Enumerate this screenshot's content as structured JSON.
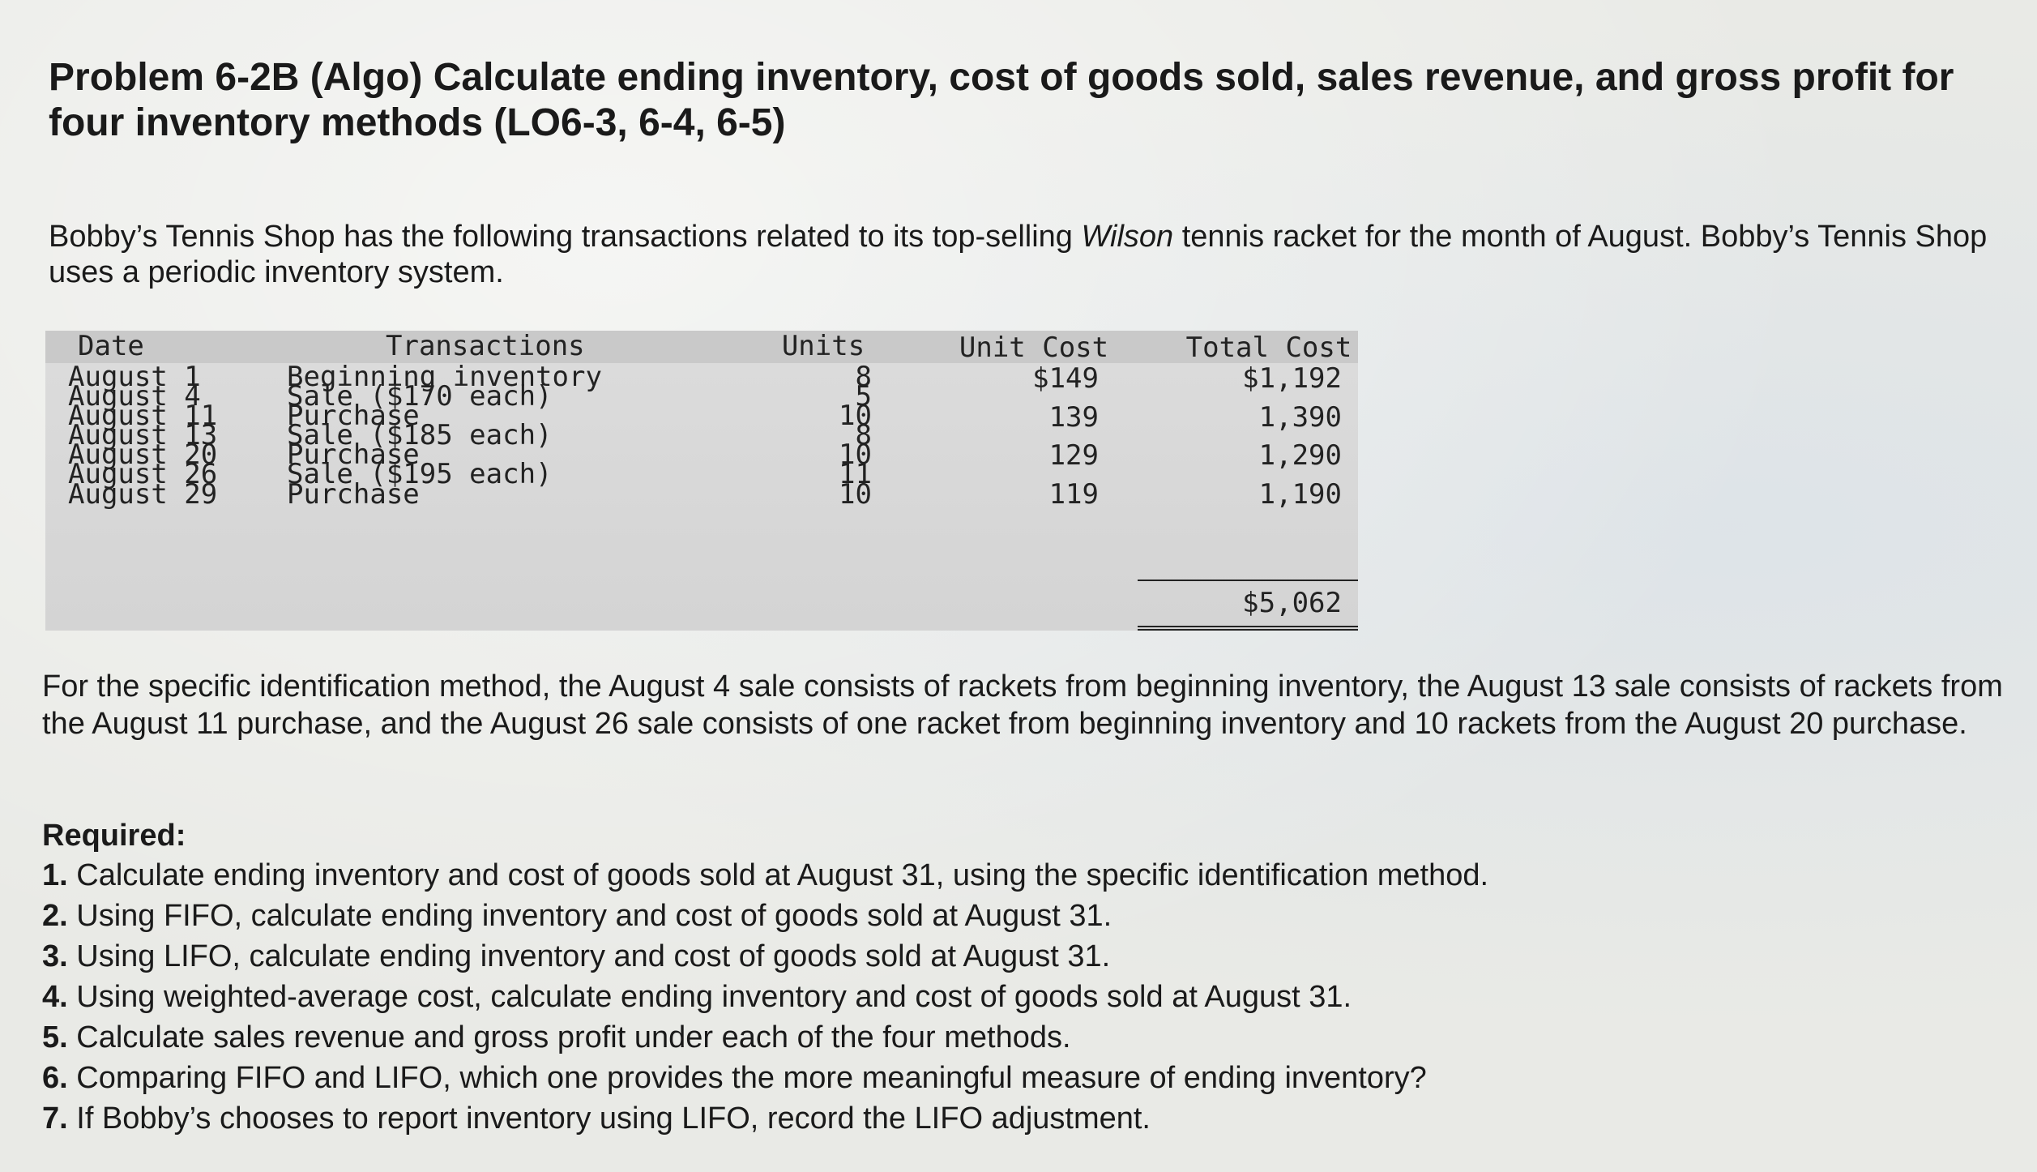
{
  "title": "Problem 6-2B (Algo) Calculate ending inventory, cost of goods sold, sales revenue, and gross profit for four inventory methods (LO6-3, 6-4, 6-5)",
  "intro": {
    "before": "Bobby’s Tennis Shop has the following transactions related to its top-selling ",
    "brand": "Wilson",
    "after": " tennis racket for the month of August. Bobby’s Tennis Shop uses a periodic inventory system."
  },
  "table": {
    "headers": {
      "date": "Date",
      "transactions": "Transactions",
      "units": "Units",
      "unit_cost": "Unit Cost",
      "total_cost": "Total Cost"
    },
    "rows": [
      {
        "date": "August 1",
        "transaction": "Beginning inventory",
        "units": "8",
        "unit_cost": "$149",
        "total_cost": "$1,192"
      },
      {
        "date": "August 4",
        "transaction": "Sale ($170 each)",
        "units": "5",
        "unit_cost": "",
        "total_cost": ""
      },
      {
        "date": "August 11",
        "transaction": "Purchase",
        "units": "10",
        "unit_cost": "139",
        "total_cost": "1,390"
      },
      {
        "date": "August 13",
        "transaction": "Sale ($185 each)",
        "units": "8",
        "unit_cost": "",
        "total_cost": ""
      },
      {
        "date": "August 20",
        "transaction": "Purchase",
        "units": "10",
        "unit_cost": "129",
        "total_cost": "1,290"
      },
      {
        "date": "August 26",
        "transaction": "Sale ($195 each)",
        "units": "11",
        "unit_cost": "",
        "total_cost": ""
      },
      {
        "date": "August 29",
        "transaction": "Purchase",
        "units": "10",
        "unit_cost": "119",
        "total_cost": "1,190"
      }
    ],
    "grand_total": "$5,062"
  },
  "specific_id_note": "For the specific identification method, the August 4 sale consists of rackets from beginning inventory, the August 13 sale consists of rackets from the August 11 purchase, and the August 26 sale consists of one racket from beginning inventory and 10 rackets from the August 20 purchase.",
  "required": {
    "label": "Required:",
    "items": [
      {
        "num": "1.",
        "text": " Calculate ending inventory and cost of goods sold at August 31, using the specific identification method."
      },
      {
        "num": "2.",
        "text": " Using FIFO, calculate ending inventory and cost of goods sold at August 31."
      },
      {
        "num": "3.",
        "text": " Using LIFO, calculate ending inventory and cost of goods sold at August 31."
      },
      {
        "num": "4.",
        "text": " Using weighted-average cost, calculate ending inventory and cost of goods sold at August 31."
      },
      {
        "num": "5.",
        "text": " Calculate sales revenue and gross profit under each of the four methods."
      },
      {
        "num": "6.",
        "text": " Comparing FIFO and LIFO, which one provides the more meaningful measure of ending inventory?"
      },
      {
        "num": "7.",
        "text": " If Bobby’s chooses to report inventory using LIFO, record the LIFO adjustment."
      }
    ]
  }
}
